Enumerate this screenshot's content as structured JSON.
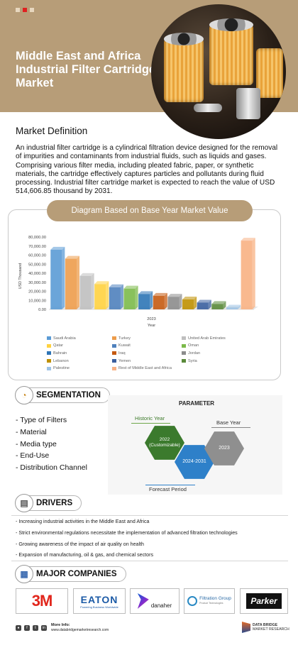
{
  "hero": {
    "title": "Middle East and Africa Industrial Filter Cartridge Market",
    "dot_colors": [
      "#e7d7bf",
      "#e02020",
      "#e7d7bf"
    ]
  },
  "market_definition": {
    "title": "Market Definition",
    "text": "An industrial filter cartridge is a cylindrical filtration device designed for the removal of impurities and contaminants from industrial fluids, such as liquids and gases. Comprising various filter media, including pleated fabric, paper, or synthetic materials, the cartridge effectively captures particles and pollutants during fluid processing. Industrial filter cartridge market is expected to reach the value of USD 514,606.85 thousand by 2031."
  },
  "chart_section": {
    "header": "Diagram Based on Base Year Market Value"
  },
  "chart_data": {
    "type": "bar",
    "ylabel": "USD Thousand",
    "xlabel": "Year",
    "categories": [
      "2023"
    ],
    "ylim": [
      0,
      80000
    ],
    "yticks": [
      "80,000.00",
      "70,000.00",
      "60,000.00",
      "50,000.00",
      "40,000.00",
      "30,000.00",
      "20,000.00",
      "10,000.00",
      "0.00"
    ],
    "legend_position": "bottom",
    "series": [
      {
        "name": "Saudi Arabia",
        "value": 66000,
        "color": "#5b9bd5"
      },
      {
        "name": "Turkey",
        "value": 56000,
        "color": "#ed9c4b"
      },
      {
        "name": "United Arab Emirates",
        "value": 37000,
        "color": "#bfbfbf"
      },
      {
        "name": "Qatar",
        "value": 28000,
        "color": "#ffd23f"
      },
      {
        "name": "Kuwait",
        "value": 24500,
        "color": "#4f81bd"
      },
      {
        "name": "Oman",
        "value": 23000,
        "color": "#7cba4a"
      },
      {
        "name": "Bahrain",
        "value": 17000,
        "color": "#2e75b6"
      },
      {
        "name": "Iraq",
        "value": 15000,
        "color": "#c55a11"
      },
      {
        "name": "Jordan",
        "value": 14000,
        "color": "#8c8c8c"
      },
      {
        "name": "Lebanon",
        "value": 11000,
        "color": "#bf9000"
      },
      {
        "name": "Yemen",
        "value": 7500,
        "color": "#3a5f9e"
      },
      {
        "name": "Syria",
        "value": 6000,
        "color": "#5a8a3a"
      },
      {
        "name": "Palestine",
        "value": 2000,
        "color": "#9dc3e6"
      },
      {
        "name": "Rest of Middle East and Africa",
        "value": 76000,
        "color": "#f8b183"
      }
    ]
  },
  "segmentation": {
    "title": "SEGMENTATION",
    "items": [
      "Type of Filters",
      "Material",
      "Media type",
      "End-Use",
      "Distribution Channel"
    ],
    "parameter": {
      "title": "PARAMETER",
      "historic_label": "Historic Year",
      "base_label": "Base Year",
      "forecast_label": "Forecast Period",
      "historic_value": "2022 (Customizable)",
      "forecast_value": "2024-2031",
      "base_value": "2023"
    }
  },
  "drivers": {
    "title": "DRIVERS",
    "items": [
      "Increasing industrial activities in the Middle East and Africa",
      "Strict environmental regulations necessitate the implementation of advanced filtration technologies",
      "Growing awareness of the impact of air quality on health",
      "Expansion of manufacturing, oil & gas, and chemical sectors"
    ]
  },
  "companies": {
    "title": "MAJOR COMPANIES",
    "logos": {
      "threem": "3M",
      "eaton": "EATON",
      "eaton_tagline": "Powering Business Worldwide",
      "danaher": "danaher",
      "filtration": "Filtration Group",
      "filtration_sub": "Product Technologies",
      "parker": "Parker"
    }
  },
  "footer": {
    "more_info_label": "More Info:",
    "url": "www.databridgemarketresearch.com",
    "brand_line1": "DATA BRIDGE",
    "brand_line2": "MARKET RESEARCH"
  }
}
